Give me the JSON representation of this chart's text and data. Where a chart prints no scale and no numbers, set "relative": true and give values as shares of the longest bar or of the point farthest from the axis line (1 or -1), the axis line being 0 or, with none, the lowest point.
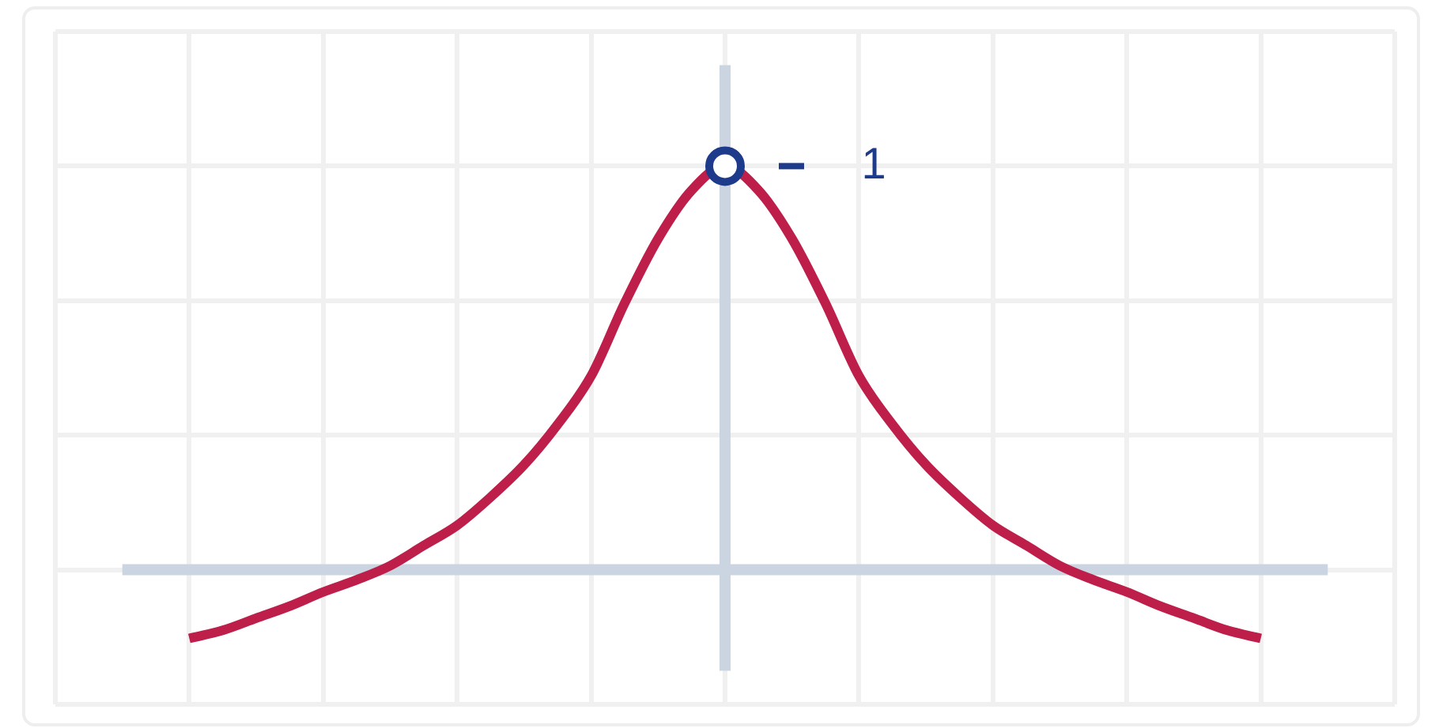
{
  "chart_data": {
    "type": "line",
    "relative": true,
    "grid": true,
    "categories": [
      null,
      null,
      null,
      null,
      null,
      null,
      null,
      null,
      null,
      null,
      null,
      null,
      null,
      null,
      null,
      null,
      null,
      null,
      null,
      null,
      null,
      null,
      null,
      null,
      null,
      null,
      null,
      null,
      null,
      null,
      null,
      null,
      null
    ],
    "series": [
      {
        "color": "#be1e4a",
        "marker": "none",
        "values": [
          -0.17,
          -0.15,
          -0.12,
          -0.09,
          -0.055,
          -0.025,
          0.01,
          0.06,
          0.11,
          0.18,
          0.26,
          0.36,
          0.48,
          0.66,
          0.82,
          0.94,
          1,
          0.94,
          0.82,
          0.66,
          0.48,
          0.36,
          0.26,
          0.18,
          0.11,
          0.06,
          0.01,
          -0.025,
          -0.055,
          -0.09,
          -0.12,
          -0.15,
          -0.17
        ]
      },
      {
        "color": "#1e3a8a",
        "marker": "circle",
        "values": [
          null,
          null,
          null,
          null,
          null,
          null,
          null,
          null,
          null,
          null,
          null,
          null,
          null,
          null,
          null,
          null,
          1,
          null,
          null,
          null,
          null,
          null,
          null,
          null,
          null,
          null,
          null,
          null,
          null,
          null,
          null,
          null,
          null
        ]
      }
    ],
    "annotations": [
      "1"
    ]
  }
}
